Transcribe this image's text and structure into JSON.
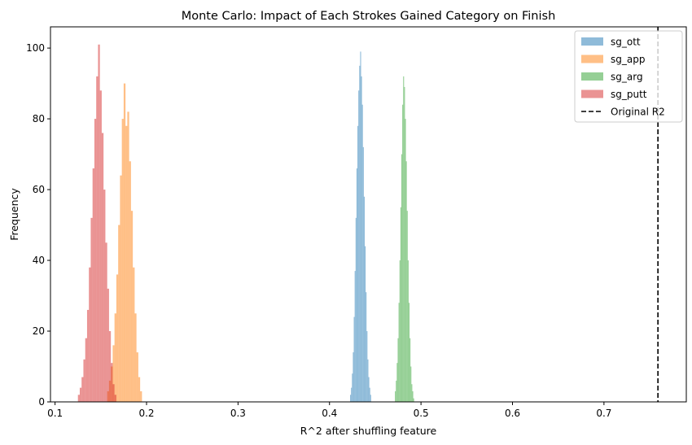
{
  "chart_data": {
    "type": "histogram",
    "title": "Monte Carlo: Impact of Each Strokes Gained Category on Finish",
    "xlabel": "R^2 after shuffling feature",
    "ylabel": "Frequency",
    "xlim": [
      0.095,
      0.79
    ],
    "ylim": [
      0,
      106
    ],
    "xticks": [
      0.1,
      0.2,
      0.3,
      0.4,
      0.5,
      0.6,
      0.7
    ],
    "xtick_labels": [
      "0.1",
      "0.2",
      "0.3",
      "0.4",
      "0.5",
      "0.6",
      "0.7"
    ],
    "yticks": [
      0,
      20,
      40,
      60,
      80,
      100
    ],
    "ytick_labels": [
      "0",
      "20",
      "40",
      "60",
      "80",
      "100"
    ],
    "legend_position": "top-right",
    "series": [
      {
        "name": "sg_ott",
        "color": "#1f77b4",
        "alpha": 0.5,
        "bins": [
          [
            0.4225,
            0.4235,
            2
          ],
          [
            0.4235,
            0.4245,
            4
          ],
          [
            0.4245,
            0.4255,
            8
          ],
          [
            0.4255,
            0.4265,
            14
          ],
          [
            0.4265,
            0.4275,
            24
          ],
          [
            0.4275,
            0.4285,
            37
          ],
          [
            0.4285,
            0.4295,
            52
          ],
          [
            0.4295,
            0.4305,
            66
          ],
          [
            0.4305,
            0.4315,
            78
          ],
          [
            0.4315,
            0.4325,
            88
          ],
          [
            0.4325,
            0.4335,
            95
          ],
          [
            0.4335,
            0.4345,
            99
          ],
          [
            0.4345,
            0.4355,
            92
          ],
          [
            0.4355,
            0.4365,
            84
          ],
          [
            0.4365,
            0.4375,
            72
          ],
          [
            0.4375,
            0.4385,
            58
          ],
          [
            0.4385,
            0.4395,
            44
          ],
          [
            0.4395,
            0.4405,
            31
          ],
          [
            0.4405,
            0.4415,
            20
          ],
          [
            0.4415,
            0.4425,
            12
          ],
          [
            0.4425,
            0.4435,
            7
          ],
          [
            0.4435,
            0.4445,
            4
          ],
          [
            0.4445,
            0.4455,
            2
          ]
        ]
      },
      {
        "name": "sg_app",
        "color": "#ff7f0e",
        "alpha": 0.5,
        "bins": [
          [
            0.157,
            0.159,
            3
          ],
          [
            0.159,
            0.161,
            6
          ],
          [
            0.161,
            0.163,
            10
          ],
          [
            0.163,
            0.165,
            16
          ],
          [
            0.165,
            0.167,
            25
          ],
          [
            0.167,
            0.169,
            36
          ],
          [
            0.169,
            0.171,
            50
          ],
          [
            0.171,
            0.173,
            64
          ],
          [
            0.173,
            0.175,
            80
          ],
          [
            0.175,
            0.177,
            90
          ],
          [
            0.177,
            0.179,
            78
          ],
          [
            0.179,
            0.181,
            82
          ],
          [
            0.181,
            0.183,
            68
          ],
          [
            0.183,
            0.185,
            54
          ],
          [
            0.185,
            0.187,
            38
          ],
          [
            0.187,
            0.189,
            25
          ],
          [
            0.189,
            0.191,
            14
          ],
          [
            0.191,
            0.193,
            7
          ],
          [
            0.193,
            0.195,
            3
          ]
        ]
      },
      {
        "name": "sg_arg",
        "color": "#2ca02c",
        "alpha": 0.5,
        "bins": [
          [
            0.4715,
            0.4725,
            3
          ],
          [
            0.4725,
            0.4735,
            6
          ],
          [
            0.4735,
            0.4745,
            11
          ],
          [
            0.4745,
            0.4755,
            18
          ],
          [
            0.4755,
            0.4765,
            28
          ],
          [
            0.4765,
            0.4775,
            40
          ],
          [
            0.4775,
            0.4785,
            55
          ],
          [
            0.4785,
            0.4795,
            70
          ],
          [
            0.4795,
            0.4805,
            84
          ],
          [
            0.4805,
            0.4815,
            92
          ],
          [
            0.4815,
            0.4825,
            89
          ],
          [
            0.4825,
            0.4835,
            80
          ],
          [
            0.4835,
            0.4845,
            68
          ],
          [
            0.4845,
            0.4855,
            54
          ],
          [
            0.4855,
            0.4865,
            40
          ],
          [
            0.4865,
            0.4875,
            28
          ],
          [
            0.4875,
            0.4885,
            18
          ],
          [
            0.4885,
            0.4895,
            10
          ],
          [
            0.4895,
            0.4905,
            5
          ],
          [
            0.4905,
            0.4915,
            3
          ],
          [
            0.4915,
            0.4925,
            1
          ]
        ]
      },
      {
        "name": "sg_putt",
        "color": "#d62728",
        "alpha": 0.5,
        "bins": [
          [
            0.125,
            0.127,
            2
          ],
          [
            0.127,
            0.129,
            4
          ],
          [
            0.129,
            0.131,
            7
          ],
          [
            0.131,
            0.133,
            12
          ],
          [
            0.133,
            0.135,
            18
          ],
          [
            0.135,
            0.137,
            26
          ],
          [
            0.137,
            0.139,
            38
          ],
          [
            0.139,
            0.141,
            52
          ],
          [
            0.141,
            0.143,
            66
          ],
          [
            0.143,
            0.145,
            80
          ],
          [
            0.145,
            0.147,
            92
          ],
          [
            0.147,
            0.149,
            101
          ],
          [
            0.149,
            0.151,
            88
          ],
          [
            0.151,
            0.153,
            76
          ],
          [
            0.153,
            0.155,
            60
          ],
          [
            0.155,
            0.157,
            45
          ],
          [
            0.157,
            0.159,
            32
          ],
          [
            0.159,
            0.161,
            20
          ],
          [
            0.161,
            0.163,
            11
          ],
          [
            0.163,
            0.165,
            5
          ],
          [
            0.165,
            0.167,
            2
          ]
        ]
      }
    ],
    "reference_line": {
      "name": "Original R2",
      "x": 0.759,
      "color": "#000000",
      "style": "dashed"
    }
  }
}
